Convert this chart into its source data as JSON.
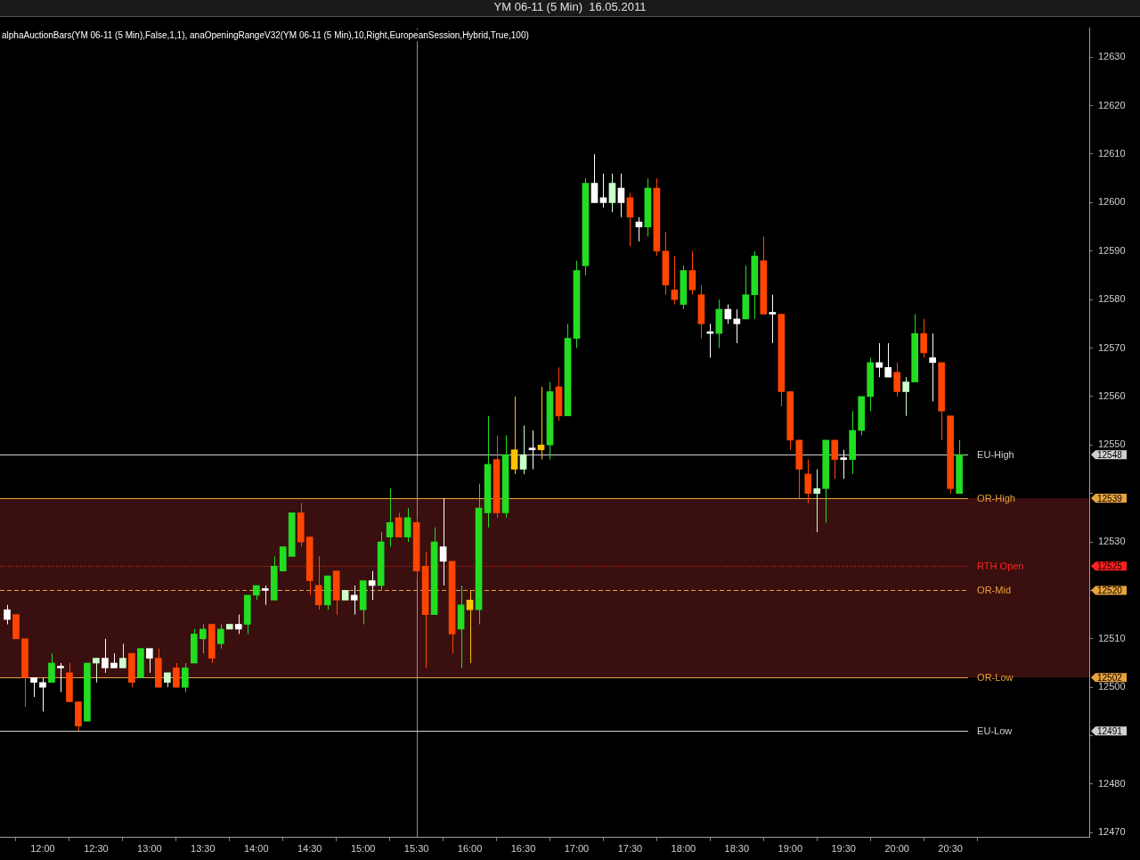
{
  "chart_data": {
    "type": "candlestick",
    "title": "YM 06-11 (5 Min)  16.05.2011",
    "annotations": [
      "alphaAuctionBars(YM 06-11 (5 Min),False,1,1), anaOpeningRangeV32(YM 06-11 (5 Min),10,Right,EuropeanSession,Hybrid,True,100)",
      "12548",
      "12539",
      "12525",
      "12520",
      "12502",
      "12491"
    ],
    "x": [
      11.6667,
      11.75,
      11.8333,
      11.9167,
      12,
      12.0833,
      12.1667,
      12.25,
      12.3333,
      12.4167,
      12.5,
      12.5833,
      12.6667,
      12.75,
      12.8333,
      12.9167,
      13,
      13.0833,
      13.1667,
      13.25,
      13.3333,
      13.4167,
      13.5,
      13.5833,
      13.6667,
      13.75,
      13.8333,
      13.9167,
      14,
      14.0833,
      14.1667,
      14.25,
      14.3333,
      14.4167,
      14.5,
      14.5833,
      14.6667,
      14.75,
      14.8333,
      14.9167,
      15,
      15.0833,
      15.1667,
      15.25,
      15.3333,
      15.4167,
      15.5,
      15.5833,
      15.6667,
      15.75,
      15.8333,
      15.9167,
      16,
      16.0833,
      16.1667,
      16.25,
      16.3333,
      16.4167,
      16.5,
      16.5833,
      16.6667,
      16.75,
      16.8333,
      16.9167,
      17,
      17.0833,
      17.1667,
      17.25,
      17.3333,
      17.4167,
      17.5,
      17.5833,
      17.6667,
      17.75,
      17.8333,
      17.9167,
      18,
      18.0833,
      18.1667,
      18.25,
      18.3333,
      18.4167,
      18.5,
      18.5833,
      18.6667,
      18.75,
      18.8333,
      18.9167,
      19,
      19.0833,
      19.1667,
      19.25,
      19.3333,
      19.4167,
      19.5,
      19.5833,
      19.6667,
      19.75,
      19.8333,
      19.9167,
      20,
      20.0833,
      20.1667,
      20.25,
      20.3333,
      20.4167,
      20.5,
      20.5833
    ],
    "ohlc": [
      [
        12516,
        12517,
        12513,
        12514
      ],
      [
        12515,
        12515,
        12510,
        12510
      ],
      [
        12510,
        12510,
        12496,
        12502
      ],
      [
        12502,
        12502,
        12498,
        12501
      ],
      [
        12501,
        12502,
        12495,
        12500
      ],
      [
        12501,
        12507,
        12501,
        12505
      ],
      [
        12504,
        12505,
        12499,
        12504
      ],
      [
        12503,
        12505,
        12497,
        12497
      ],
      [
        12497,
        12497,
        12491,
        12492
      ],
      [
        12493,
        12505,
        12493,
        12505
      ],
      [
        12505,
        12506,
        12501,
        12506
      ],
      [
        12506,
        12510,
        12503,
        12504
      ],
      [
        12505,
        12507,
        12504,
        12504
      ],
      [
        12504,
        12509,
        12504,
        12506
      ],
      [
        12507,
        12507,
        12500,
        12501
      ],
      [
        12502,
        12508,
        12502,
        12508
      ],
      [
        12508,
        12508,
        12503,
        12506
      ],
      [
        12506,
        12508,
        12500,
        12500
      ],
      [
        12501,
        12503,
        12500,
        12503
      ],
      [
        12504,
        12505,
        12500,
        12500
      ],
      [
        12500,
        12505,
        12499,
        12504
      ],
      [
        12505,
        12512,
        12505,
        12511
      ],
      [
        12510,
        12513,
        12507,
        12512
      ],
      [
        12513,
        12513,
        12505,
        12506
      ],
      [
        12509,
        12513,
        12508,
        12512
      ],
      [
        12512,
        12513,
        12512,
        12513
      ],
      [
        12513,
        12515,
        12511,
        12512
      ],
      [
        12513,
        12519,
        12511,
        12519
      ],
      [
        12519,
        12521,
        12518,
        12521
      ],
      [
        12520,
        12521,
        12517,
        12520
      ],
      [
        12518,
        12527,
        12518,
        12525
      ],
      [
        12524,
        12529,
        12524,
        12529
      ],
      [
        12527,
        12536,
        12527,
        12536
      ],
      [
        12536,
        12538,
        12529,
        12530
      ],
      [
        12531,
        12531,
        12519,
        12522
      ],
      [
        12521,
        12527,
        12516,
        12517
      ],
      [
        12517,
        12523,
        12516,
        12523
      ],
      [
        12524,
        12524,
        12515,
        12518
      ],
      [
        12518,
        12520,
        12518,
        12520
      ],
      [
        12519,
        12521,
        12515,
        12518
      ],
      [
        12516,
        12522,
        12513,
        12522
      ],
      [
        12522,
        12524,
        12518,
        12521
      ],
      [
        12521,
        12532,
        12520,
        12530
      ],
      [
        12531,
        12541,
        12529,
        12534
      ],
      [
        12535,
        12536,
        12531,
        12531
      ],
      [
        12531,
        12537,
        12530,
        12535
      ],
      [
        12534,
        12535,
        12522,
        12524
      ],
      [
        12525,
        12528,
        12504,
        12515
      ],
      [
        12515,
        12533,
        12515,
        12530
      ],
      [
        12529,
        12539,
        12521,
        12526
      ],
      [
        12526,
        12526,
        12507,
        12511
      ],
      [
        12512,
        12521,
        12504,
        12517
      ],
      [
        12518,
        12520,
        12505,
        12516
      ],
      [
        12516,
        12542,
        12513,
        12537
      ],
      [
        12536,
        12556,
        12533,
        12546
      ],
      [
        12547,
        12552,
        12535,
        12536
      ],
      [
        12536,
        12552,
        12535,
        12548
      ],
      [
        12549,
        12560,
        12544,
        12545
      ],
      [
        12545,
        12554,
        12544,
        12548
      ],
      [
        12549,
        12553,
        12545,
        12549
      ],
      [
        12550,
        12562,
        12547,
        12549
      ],
      [
        12550,
        12563,
        12547,
        12561
      ],
      [
        12562,
        12566,
        12555,
        12556
      ],
      [
        12556,
        12575,
        12556,
        12572
      ],
      [
        12572,
        12588,
        12570,
        12586
      ],
      [
        12587,
        12605,
        12585,
        12604
      ],
      [
        12604,
        12610,
        12600,
        12600
      ],
      [
        12601,
        12606,
        12599,
        12600
      ],
      [
        12600,
        12606,
        12598,
        12604
      ],
      [
        12603,
        12606,
        12597,
        12600
      ],
      [
        12601,
        12602,
        12591,
        12597
      ],
      [
        12596,
        12597,
        12592,
        12595
      ],
      [
        12595,
        12605,
        12593,
        12603
      ],
      [
        12603,
        12605,
        12589,
        12590
      ],
      [
        12590,
        12594,
        12581,
        12583
      ],
      [
        12582,
        12589,
        12579,
        12580
      ],
      [
        12579,
        12587,
        12578,
        12586
      ],
      [
        12586,
        12590,
        12581,
        12582
      ],
      [
        12581,
        12583,
        12572,
        12575
      ],
      [
        12573,
        12575,
        12568,
        12573
      ],
      [
        12573,
        12580,
        12570,
        12578
      ],
      [
        12578,
        12579,
        12575,
        12576
      ],
      [
        12576,
        12578,
        12571,
        12575
      ],
      [
        12576,
        12587,
        12576,
        12581
      ],
      [
        12581,
        12590,
        12576,
        12589
      ],
      [
        12588,
        12593,
        12577,
        12577
      ],
      [
        12577,
        12581,
        12571,
        12577
      ],
      [
        12577,
        12577,
        12558,
        12561
      ],
      [
        12561,
        12561,
        12549,
        12551
      ],
      [
        12551,
        12551,
        12539,
        12545
      ],
      [
        12544,
        12547,
        12538,
        12540
      ],
      [
        12540,
        12545,
        12532,
        12541
      ],
      [
        12541,
        12551,
        12534,
        12551
      ],
      [
        12551,
        12551,
        12543,
        12547
      ],
      [
        12547,
        12549,
        12543,
        12547
      ],
      [
        12547,
        12557,
        12544,
        12553
      ],
      [
        12553,
        12560,
        12552,
        12560
      ],
      [
        12560,
        12568,
        12557,
        12567
      ],
      [
        12567,
        12571,
        12564,
        12566
      ],
      [
        12566,
        12571,
        12564,
        12564
      ],
      [
        12565,
        12567,
        12560,
        12561
      ],
      [
        12561,
        12564,
        12556,
        12563
      ],
      [
        12563,
        12577,
        12563,
        12573
      ],
      [
        12573,
        12576,
        12568,
        12569
      ],
      [
        12568,
        12573,
        12559,
        12567
      ],
      [
        12567,
        12567,
        12551,
        12557
      ],
      [
        12556,
        12556,
        12540,
        12541
      ],
      [
        12540,
        12551,
        12540,
        12548
      ]
    ],
    "colors": [
      "#ffffff",
      "#ff4500",
      "#ff4500",
      "#ffffff",
      "#ffffff",
      "#22dd22",
      "#ffffff",
      "#ff4500",
      "#ff4500",
      "#22dd22",
      "#ccffcc",
      "#ffffff",
      "#ffffff",
      "#ccffcc",
      "#ff4500",
      "#22dd22",
      "#ffffff",
      "#ff4500",
      "#ccffcc",
      "#ff4500",
      "#22dd22",
      "#22dd22",
      "#22dd22",
      "#ff4500",
      "#22dd22",
      "#ccffcc",
      "#ffffff",
      "#22dd22",
      "#22dd22",
      "#ffffff",
      "#22dd22",
      "#22dd22",
      "#22dd22",
      "#ff4500",
      "#ff4500",
      "#ff4500",
      "#22dd22",
      "#ff4500",
      "#ccffcc",
      "#ffffff",
      "#22dd22",
      "#ffffff",
      "#22dd22",
      "#22dd22",
      "#ff4500",
      "#22dd22",
      "#ff4500",
      "#ff4500",
      "#22dd22",
      "#ffffff",
      "#ff4500",
      "#22dd22",
      "#ffc000",
      "#22dd22",
      "#22dd22",
      "#ff4500",
      "#22dd22",
      "#ffc000",
      "#ccffcc",
      "#ffffff",
      "#ffc000",
      "#22dd22",
      "#ff4500",
      "#22dd22",
      "#22dd22",
      "#22dd22",
      "#ffffff",
      "#ffffff",
      "#ccffcc",
      "#ffffff",
      "#ff4500",
      "#ffffff",
      "#22dd22",
      "#ff4500",
      "#ff4500",
      "#ff4500",
      "#22dd22",
      "#ff4500",
      "#ff4500",
      "#ffffff",
      "#22dd22",
      "#ffffff",
      "#ffffff",
      "#22dd22",
      "#22dd22",
      "#ff4500",
      "#ffffff",
      "#ff4500",
      "#ff4500",
      "#ff4500",
      "#ff4500",
      "#ccffcc",
      "#22dd22",
      "#ff4500",
      "#ffffff",
      "#22dd22",
      "#22dd22",
      "#22dd22",
      "#ffffff",
      "#ffffff",
      "#ff4500",
      "#ccffcc",
      "#22dd22",
      "#ff4500",
      "#ffffff",
      "#ff4500",
      "#ff4500",
      "#22dd22"
    ],
    "xlim": [
      11.6,
      21.8
    ],
    "xticks": [
      {
        "value": 12,
        "label": "12:00"
      },
      {
        "value": 12.5,
        "label": "12:30"
      },
      {
        "value": 13,
        "label": "13:00"
      },
      {
        "value": 13.5,
        "label": "13:30"
      },
      {
        "value": 14,
        "label": "14:00"
      },
      {
        "value": 14.5,
        "label": "14:30"
      },
      {
        "value": 15,
        "label": "15:00"
      },
      {
        "value": 15.5,
        "label": "15:30"
      },
      {
        "value": 16,
        "label": "16:00"
      },
      {
        "value": 16.5,
        "label": "16:30"
      },
      {
        "value": 17,
        "label": "17:00"
      },
      {
        "value": 17.5,
        "label": "17:30"
      },
      {
        "value": 18,
        "label": "18:00"
      },
      {
        "value": 18.5,
        "label": "18:30"
      },
      {
        "value": 19,
        "label": "19:00"
      },
      {
        "value": 19.5,
        "label": "19:30"
      },
      {
        "value": 20,
        "label": "20:00"
      },
      {
        "value": 20.5,
        "label": "20:30"
      }
    ],
    "ylim": [
      12469,
      12636
    ],
    "yticks": [
      12470,
      12480,
      {
        "value": 12490,
        "label": null
      },
      12500,
      12510,
      {
        "value": 12520,
        "label": null
      },
      12530,
      {
        "value": 12540,
        "label": null
      },
      12550,
      12560,
      12570,
      12580,
      12590,
      12600,
      12610,
      12620,
      12630
    ],
    "bands": [
      {
        "axis": "y",
        "from": 12502,
        "to": 12539,
        "color": "#3a0f0f"
      }
    ],
    "ref_lines": [
      {
        "axis": "x",
        "value": 15.5,
        "color": "#909090",
        "line_style": "solid"
      },
      {
        "axis": "y",
        "value": 12548,
        "label": "EU-High",
        "color": "#d0d0d0",
        "line_style": "solid"
      },
      {
        "axis": "y",
        "value": 12539,
        "label": "OR-High",
        "color": "#e8a33c",
        "line_style": "solid"
      },
      {
        "axis": "y",
        "value": 12525,
        "label": "RTH Open",
        "color": "#ff2020",
        "line_style": "dotted"
      },
      {
        "axis": "y",
        "value": 12520,
        "label": "OR-Mid",
        "color": "#e8a33c",
        "line_style": "dashed"
      },
      {
        "axis": "y",
        "value": 12502,
        "label": "OR-Low",
        "color": "#e8a33c",
        "line_style": "solid"
      },
      {
        "axis": "y",
        "value": 12491,
        "label": "EU-Low",
        "color": "#d0d0d0",
        "line_style": "solid"
      }
    ],
    "grid": false,
    "legend": false
  }
}
